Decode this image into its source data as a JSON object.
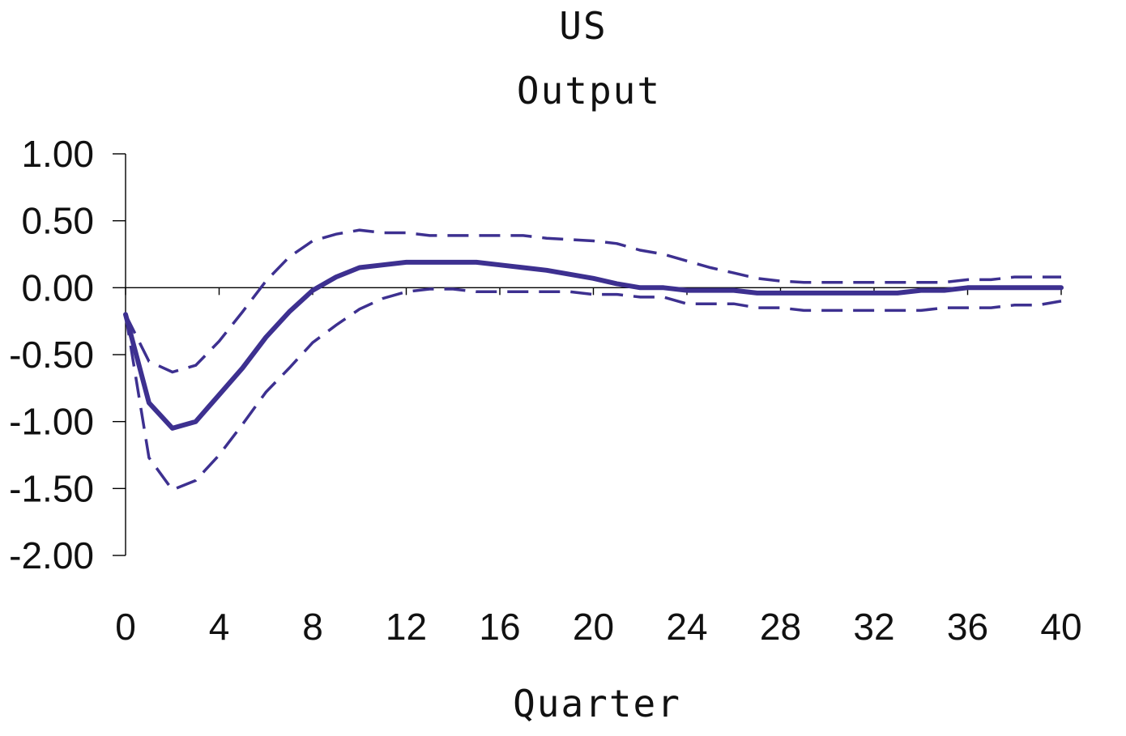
{
  "chart_data": {
    "type": "line",
    "title": "US",
    "subtitle": "Output",
    "xlabel": "Quarter",
    "ylabel": "",
    "xlim": [
      0,
      40
    ],
    "ylim": [
      -2.0,
      1.0
    ],
    "y_ticks": [
      1.0,
      0.5,
      0.0,
      -0.5,
      -1.0,
      -1.5,
      -2.0
    ],
    "y_tick_labels": [
      "1.00",
      "0.50",
      "0.00",
      "-0.50",
      "-1.00",
      "-1.50",
      "-2.00"
    ],
    "x_ticks": [
      0,
      4,
      8,
      12,
      16,
      20,
      24,
      28,
      32,
      36,
      40
    ],
    "x_tick_labels": [
      "0",
      "4",
      "8",
      "12",
      "16",
      "20",
      "24",
      "28",
      "32",
      "36",
      "40"
    ],
    "grid": false,
    "legend": "none",
    "color": "#3d3090",
    "x": [
      0,
      1,
      2,
      3,
      4,
      5,
      6,
      7,
      8,
      9,
      10,
      11,
      12,
      13,
      14,
      15,
      16,
      17,
      18,
      19,
      20,
      21,
      22,
      23,
      24,
      25,
      26,
      27,
      28,
      29,
      30,
      31,
      32,
      33,
      34,
      35,
      36,
      37,
      38,
      39,
      40
    ],
    "series": [
      {
        "style": "solid",
        "values": [
          -0.2,
          -0.86,
          -1.05,
          -1.0,
          -0.8,
          -0.6,
          -0.37,
          -0.18,
          -0.02,
          0.08,
          0.15,
          0.17,
          0.19,
          0.19,
          0.19,
          0.19,
          0.17,
          0.15,
          0.13,
          0.1,
          0.07,
          0.03,
          0.0,
          0.0,
          -0.02,
          -0.02,
          -0.02,
          -0.04,
          -0.04,
          -0.04,
          -0.04,
          -0.04,
          -0.04,
          -0.04,
          -0.02,
          -0.02,
          0.0,
          0.0,
          0.0,
          0.0,
          0.0
        ]
      },
      {
        "style": "dashed",
        "values": [
          -0.2,
          -0.55,
          -0.63,
          -0.58,
          -0.4,
          -0.18,
          0.05,
          0.23,
          0.35,
          0.4,
          0.43,
          0.41,
          0.41,
          0.39,
          0.39,
          0.39,
          0.39,
          0.39,
          0.37,
          0.36,
          0.35,
          0.33,
          0.28,
          0.25,
          0.2,
          0.15,
          0.11,
          0.07,
          0.05,
          0.04,
          0.04,
          0.04,
          0.04,
          0.04,
          0.04,
          0.04,
          0.06,
          0.06,
          0.08,
          0.08,
          0.08
        ]
      },
      {
        "style": "dashed",
        "values": [
          -0.2,
          -1.27,
          -1.51,
          -1.44,
          -1.25,
          -1.02,
          -0.78,
          -0.6,
          -0.41,
          -0.28,
          -0.16,
          -0.08,
          -0.03,
          -0.01,
          -0.01,
          -0.03,
          -0.03,
          -0.03,
          -0.03,
          -0.03,
          -0.05,
          -0.05,
          -0.07,
          -0.07,
          -0.12,
          -0.12,
          -0.12,
          -0.15,
          -0.15,
          -0.17,
          -0.17,
          -0.17,
          -0.17,
          -0.17,
          -0.17,
          -0.15,
          -0.15,
          -0.15,
          -0.13,
          -0.13,
          -0.1
        ]
      }
    ]
  }
}
